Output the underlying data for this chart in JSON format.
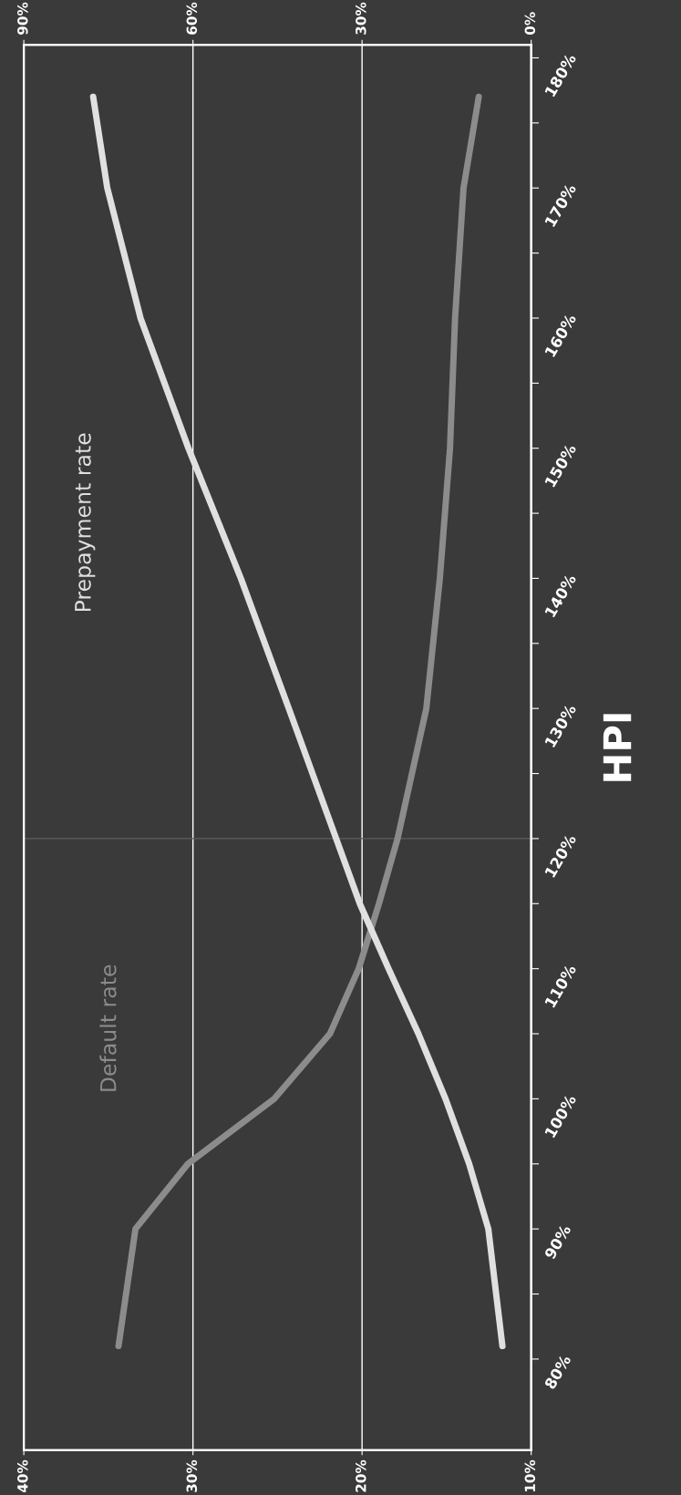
{
  "chart_data": {
    "type": "line",
    "ylabel": "HPI",
    "series": [
      {
        "name": "Default rate",
        "color": "#8c8c8c",
        "x": [
          34.4,
          33.4,
          30.3,
          25.2,
          21.9,
          20.2,
          19.0,
          17.9,
          16.2,
          15.4,
          14.8,
          14.5,
          14.0,
          13.1
        ],
        "values": [
          81,
          90,
          95,
          100,
          105,
          110,
          115,
          120,
          130,
          140,
          150,
          160,
          170,
          177
        ]
      },
      {
        "name": "Prepayment rate",
        "color": "#e0e0e0",
        "axis": "x2",
        "x": [
          5.1,
          7.6,
          11,
          15.2,
          20,
          25.3,
          30.4,
          34.6,
          43,
          51.5,
          60.8,
          69.3,
          75.2,
          77.7
        ],
        "values": [
          81,
          90,
          95,
          100,
          105,
          110,
          115,
          120,
          130,
          140,
          150,
          160,
          170,
          177
        ]
      }
    ],
    "ylim": [
      73,
      181
    ],
    "yticks": [
      {
        "value": 80,
        "label": "80%"
      },
      {
        "value": 85,
        "label": null
      },
      {
        "value": 90,
        "label": "90%"
      },
      {
        "value": 95,
        "label": null
      },
      {
        "value": 100,
        "label": "100%"
      },
      {
        "value": 105,
        "label": null
      },
      {
        "value": 110,
        "label": "110%"
      },
      {
        "value": 115,
        "label": null
      },
      {
        "value": 120,
        "label": "120%"
      },
      {
        "value": 125,
        "label": null
      },
      {
        "value": 130,
        "label": "130%"
      },
      {
        "value": 135,
        "label": null
      },
      {
        "value": 140,
        "label": "140%"
      },
      {
        "value": 145,
        "label": null
      },
      {
        "value": 150,
        "label": "150%"
      },
      {
        "value": 155,
        "label": null
      },
      {
        "value": 160,
        "label": "160%"
      },
      {
        "value": 165,
        "label": null
      },
      {
        "value": 170,
        "label": "170%"
      },
      {
        "value": 175,
        "label": null
      },
      {
        "value": 180,
        "label": "180%"
      }
    ],
    "xlim": [
      40,
      10
    ],
    "xticks": [
      {
        "value": 10,
        "label": "10%"
      },
      {
        "value": 20,
        "label": "20%"
      },
      {
        "value": 30,
        "label": "30%"
      },
      {
        "value": 40,
        "label": "40%"
      }
    ],
    "x2lim": [
      90,
      0
    ],
    "x2ticks": [
      {
        "value": 0,
        "label": "0%"
      },
      {
        "value": 30,
        "label": "30%"
      },
      {
        "value": 60,
        "label": "60%"
      },
      {
        "value": 90,
        "label": "90%"
      }
    ],
    "ref_lines": [
      {
        "axis": "y",
        "value": 120,
        "color": "#5e5e5e"
      }
    ],
    "grid": "x",
    "legend": false
  }
}
